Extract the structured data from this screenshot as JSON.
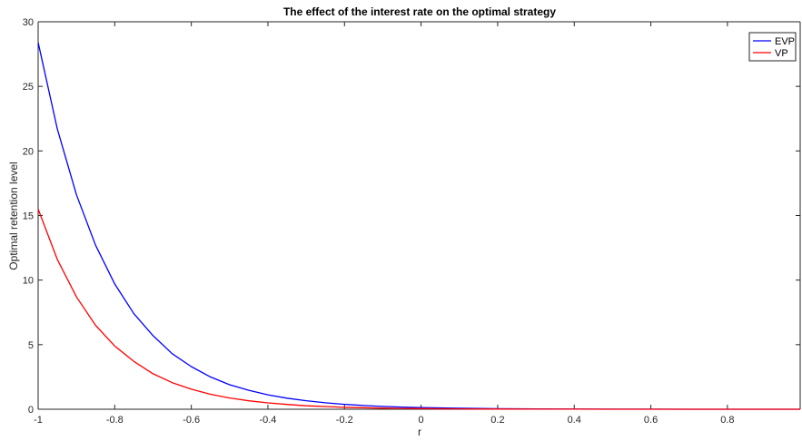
{
  "chart_data": {
    "type": "line",
    "title": "The effect of the interest rate on the optimal strategy",
    "xlabel": "r",
    "ylabel": "Optimal retention level",
    "xlim": [
      -1,
      0.99
    ],
    "ylim": [
      0,
      30
    ],
    "xticks": [
      -1,
      -0.8,
      -0.6,
      -0.4,
      -0.2,
      0,
      0.2,
      0.4,
      0.6,
      0.8
    ],
    "xtick_labels": [
      "-1",
      "-0.8",
      "-0.6",
      "-0.4",
      "-0.2",
      "0",
      "0.2",
      "0.4",
      "0.6",
      "0.8"
    ],
    "yticks": [
      0,
      5,
      10,
      15,
      20,
      25,
      30
    ],
    "ytick_labels": [
      "0",
      "5",
      "10",
      "15",
      "20",
      "25",
      "30"
    ],
    "grid": false,
    "legend_position": "top-right",
    "x": [
      -1,
      -0.95,
      -0.9,
      -0.85,
      -0.8,
      -0.75,
      -0.7,
      -0.65,
      -0.6,
      -0.55,
      -0.5,
      -0.45,
      -0.4,
      -0.35,
      -0.3,
      -0.25,
      -0.2,
      -0.15,
      -0.1,
      -0.05,
      0,
      0.1,
      0.2,
      0.3,
      0.4,
      0.5,
      0.6,
      0.7,
      0.8,
      0.9,
      0.99
    ],
    "series": [
      {
        "name": "EVP",
        "color": "#0000ff",
        "values": [
          28.4,
          21.7,
          16.6,
          12.7,
          9.7,
          7.4,
          5.7,
          4.3,
          3.3,
          2.5,
          1.9,
          1.47,
          1.12,
          0.86,
          0.66,
          0.5,
          0.38,
          0.29,
          0.22,
          0.17,
          0.13,
          0.076,
          0.045,
          0.026,
          0.015,
          0.009,
          0.005,
          0.003,
          0.002,
          0.001,
          0.001
        ]
      },
      {
        "name": "VP",
        "color": "#ff0000",
        "values": [
          15.5,
          11.6,
          8.7,
          6.5,
          4.9,
          3.7,
          2.75,
          2.06,
          1.55,
          1.16,
          0.87,
          0.65,
          0.49,
          0.37,
          0.27,
          0.21,
          0.15,
          0.12,
          0.087,
          0.065,
          0.049,
          0.027,
          0.015,
          0.009,
          0.005,
          0.003,
          0.002,
          0.001,
          0.001,
          0.0,
          0.0
        ]
      }
    ]
  }
}
